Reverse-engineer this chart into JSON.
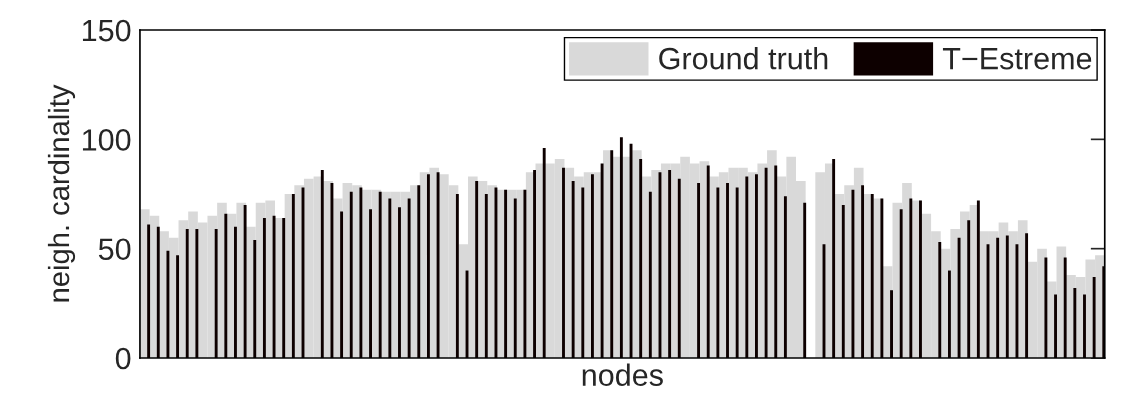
{
  "chart_data": {
    "type": "bar",
    "xlabel": "nodes",
    "ylabel": "neigh. cardinality",
    "categories": [
      null,
      null,
      null,
      null,
      null,
      null,
      null,
      null,
      null,
      null,
      null,
      null,
      null,
      null,
      null,
      null,
      null,
      null,
      null,
      null,
      null,
      null,
      null,
      null,
      null,
      null,
      null,
      null,
      null,
      null,
      null,
      null,
      null,
      null,
      null,
      null,
      null,
      null,
      null,
      null,
      null,
      null,
      null,
      null,
      null,
      null,
      null,
      null,
      null,
      null,
      null,
      null,
      null,
      null,
      null,
      null,
      null,
      null,
      null,
      null,
      null,
      null,
      null,
      null,
      null,
      null,
      null,
      null,
      null,
      null,
      null,
      null,
      null,
      null,
      null,
      null,
      null,
      null,
      null,
      null,
      null,
      null,
      null,
      null,
      null,
      null,
      null,
      null,
      null,
      null,
      null,
      null,
      null,
      null,
      null,
      null,
      null,
      null,
      null,
      null
    ],
    "series": [
      {
        "name": "Ground truth",
        "color": "#d9d9d9",
        "values": [
          68,
          65,
          58,
          55,
          63,
          67,
          62,
          65,
          71,
          66,
          71,
          60,
          71,
          72,
          64,
          75,
          79,
          82,
          83,
          81,
          73,
          80,
          79,
          77,
          77,
          76,
          76,
          76,
          79,
          85,
          87,
          84,
          79,
          52,
          83,
          81,
          79,
          77,
          77,
          77,
          85,
          89,
          89,
          91,
          87,
          83,
          85,
          85,
          95,
          92,
          92,
          95,
          83,
          86,
          89,
          89,
          92,
          89,
          90,
          83,
          85,
          87,
          87,
          85,
          89,
          95,
          83,
          92,
          81,
          null,
          85,
          89,
          75,
          79,
          87,
          75,
          73,
          42,
          71,
          80,
          72,
          66,
          58,
          50,
          59,
          67,
          70,
          58,
          58,
          62,
          58,
          63,
          44,
          50,
          35,
          51,
          38,
          37,
          45,
          47
        ]
      },
      {
        "name": "T−Estreme",
        "color": "#0d0000",
        "values": [
          61,
          60,
          49,
          47,
          59,
          59,
          null,
          59,
          66,
          60,
          70,
          54,
          64,
          65,
          64,
          75,
          78,
          null,
          86,
          80,
          67,
          76,
          78,
          68,
          76,
          73,
          69,
          73,
          79,
          84,
          85,
          null,
          75,
          40,
          81,
          75,
          78,
          77,
          73,
          77,
          86,
          96,
          null,
          87,
          81,
          78,
          84,
          89,
          95,
          101,
          98,
          91,
          76,
          85,
          86,
          82,
          null,
          80,
          88,
          78,
          80,
          78,
          83,
          84,
          87,
          88,
          74,
          null,
          71,
          null,
          52,
          91,
          70,
          77,
          79,
          75,
          73,
          31,
          68,
          73,
          72,
          null,
          53,
          40,
          55,
          63,
          72,
          52,
          55,
          56,
          52,
          57,
          null,
          46,
          29,
          46,
          32,
          29,
          37,
          42
        ]
      }
    ],
    "ylim": [
      0,
      150
    ],
    "yticks": [
      0,
      50,
      100,
      150
    ],
    "legend": "top right",
    "tick_labels": "y",
    "grid": false
  }
}
